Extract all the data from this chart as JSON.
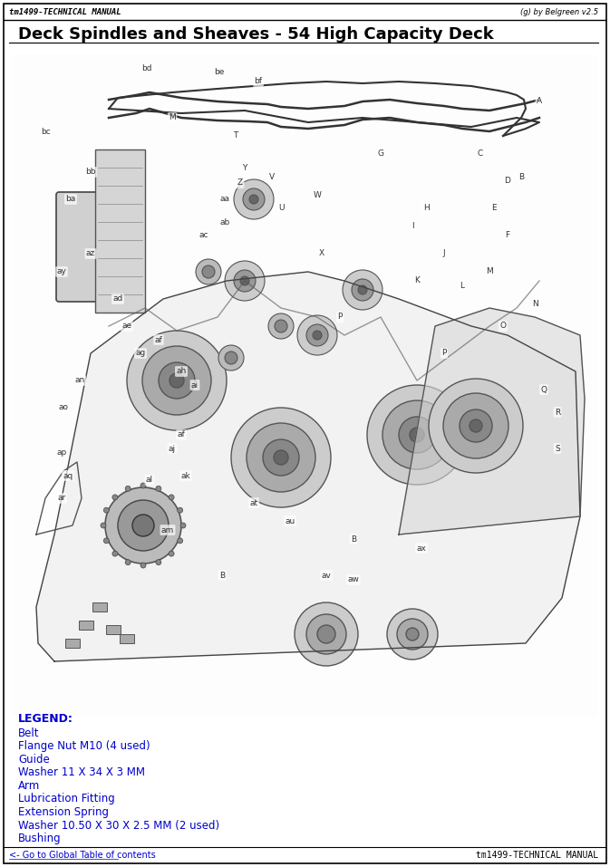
{
  "header_left": "tm1499-TECHNICAL MANUAL",
  "header_right": "(g) by Belgreen v2.5",
  "title": "Deck Spindles and Sheaves - 54 High Capacity Deck",
  "legend_title": "LEGEND:",
  "legend_items": [
    "Belt",
    "Flange Nut M10 (4 used)",
    "Guide",
    "Washer 11 X 34 X 3 MM",
    "Arm",
    "Lubrication Fitting",
    "Extension Spring",
    "Washer 10.50 X 30 X 2.5 MM (2 used)",
    "Bushing"
  ],
  "footer_left": "<- Go to Global Table of contents",
  "footer_right": "tm1499-TECHNICAL MANUAL",
  "bg_color": "#ffffff",
  "border_color": "#000000",
  "header_line_color": "#000000",
  "title_color": "#000000",
  "legend_title_color": "#0000cc",
  "legend_item_color": "#0000cc",
  "footer_link_color": "#0000cc",
  "footer_text_color": "#000000"
}
